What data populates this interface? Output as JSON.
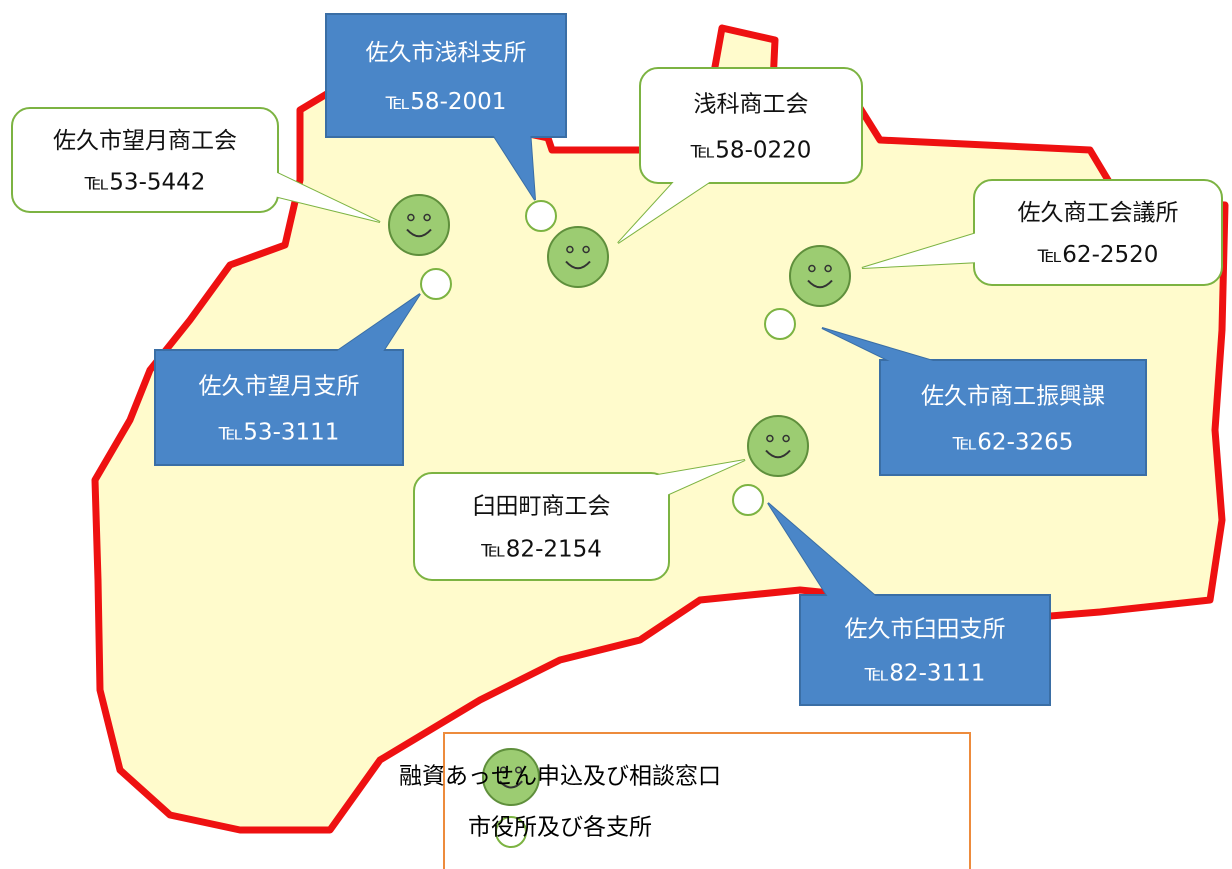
{
  "callouts": [
    {
      "name": "佐久市浅科支所",
      "tel": "℡58-2001"
    },
    {
      "name": "浅科商工会",
      "tel": "℡58-0220"
    },
    {
      "name": "佐久市望月商工会",
      "tel": "℡53-5442"
    },
    {
      "name": "佐久商工会議所",
      "tel": "℡62-2520"
    },
    {
      "name": "佐久市望月支所",
      "tel": "℡53-3111"
    },
    {
      "name": "佐久市商工振興課",
      "tel": "℡62-3265"
    },
    {
      "name": "臼田町商工会",
      "tel": "℡82-2154"
    },
    {
      "name": "佐久市臼田支所",
      "tel": "℡82-3111"
    }
  ],
  "legend": [
    "融資あっせん申込及び相談窓口",
    "市役所及び各支所"
  ]
}
